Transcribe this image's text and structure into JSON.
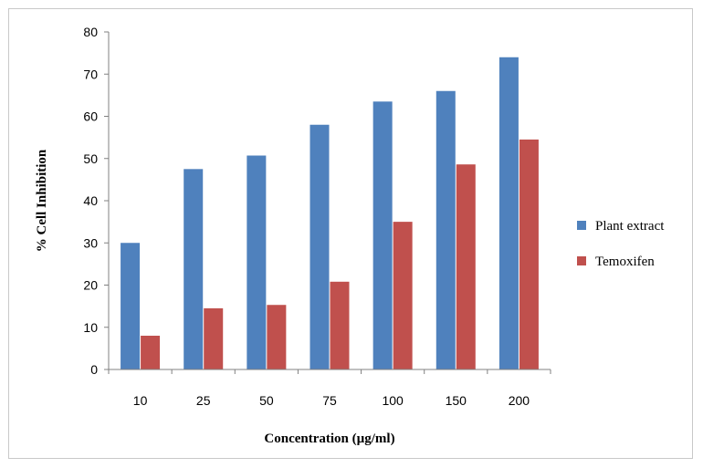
{
  "chart_data": {
    "type": "bar",
    "categories": [
      "10",
      "25",
      "50",
      "75",
      "100",
      "150",
      "200"
    ],
    "series": [
      {
        "name": "Plant extract",
        "color": "#4f81bd",
        "values": [
          30,
          47.5,
          50.7,
          58,
          63.5,
          66,
          74
        ]
      },
      {
        "name": "Temoxifen",
        "color": "#c0504d",
        "values": [
          8,
          14.5,
          15.3,
          20.8,
          35,
          48.6,
          54.5
        ]
      }
    ],
    "title": "",
    "xlabel": "Concentration (µg/ml)",
    "ylabel": "% Cell Inhibition",
    "ylim": [
      0,
      80
    ],
    "yticks": [
      "0",
      "10",
      "20",
      "30",
      "40",
      "50",
      "60",
      "70",
      "80"
    ],
    "grid": false,
    "legend_position": "right"
  }
}
